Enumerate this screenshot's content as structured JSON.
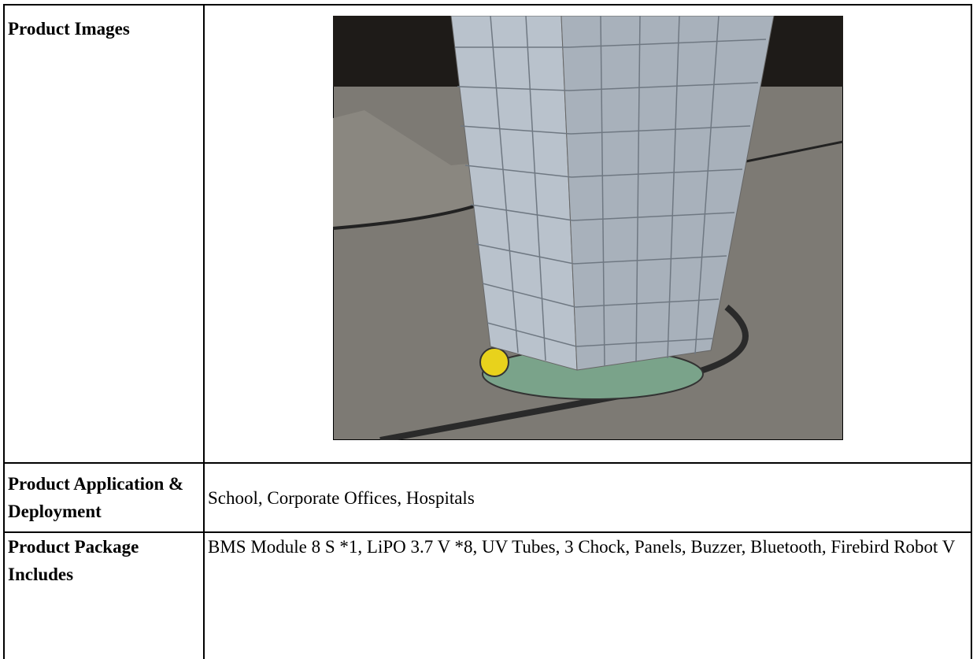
{
  "table": {
    "rows": [
      {
        "label": "Product Images"
      },
      {
        "label": "Product Application & Deployment",
        "value": "School, Corporate Offices, Hospitals"
      },
      {
        "label": "Product Package Includes",
        "value": "BMS Module 8 S *1, LiPO 3.7 V *8, UV Tubes, 3 Chock, Panels, Buzzer, Bluetooth, Firebird Robot V"
      }
    ]
  }
}
